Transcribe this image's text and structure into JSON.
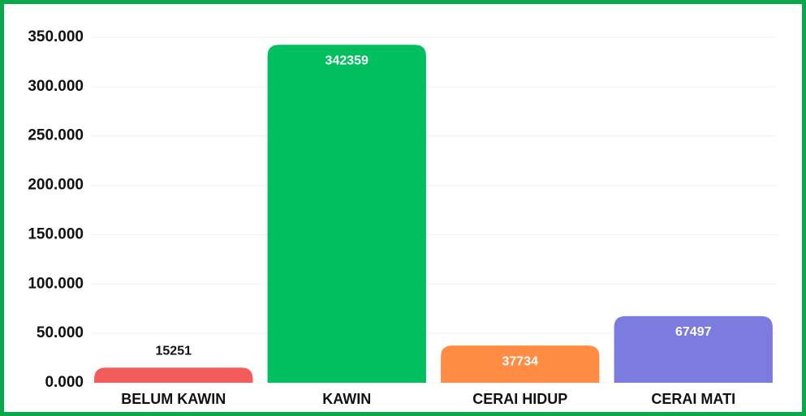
{
  "chart_data": {
    "type": "bar",
    "categories": [
      "BELUM KAWIN",
      "KAWIN",
      "CERAI HIDUP",
      "CERAI MATI"
    ],
    "values": [
      15251,
      342359,
      37734,
      67497
    ],
    "colors": [
      "#f45b5b",
      "#00bf5f",
      "#ff8c42",
      "#7b7be0"
    ],
    "ylim": [
      0,
      350000
    ],
    "yticks": [
      {
        "value": 0,
        "label": "0.000"
      },
      {
        "value": 50000,
        "label": "50.000"
      },
      {
        "value": 100000,
        "label": "100.000"
      },
      {
        "value": 150000,
        "label": "150.000"
      },
      {
        "value": 200000,
        "label": "200.000"
      },
      {
        "value": 250000,
        "label": "250.000"
      },
      {
        "value": 300000,
        "label": "300.000"
      },
      {
        "value": 350000,
        "label": "350.000"
      }
    ],
    "grid": true
  }
}
